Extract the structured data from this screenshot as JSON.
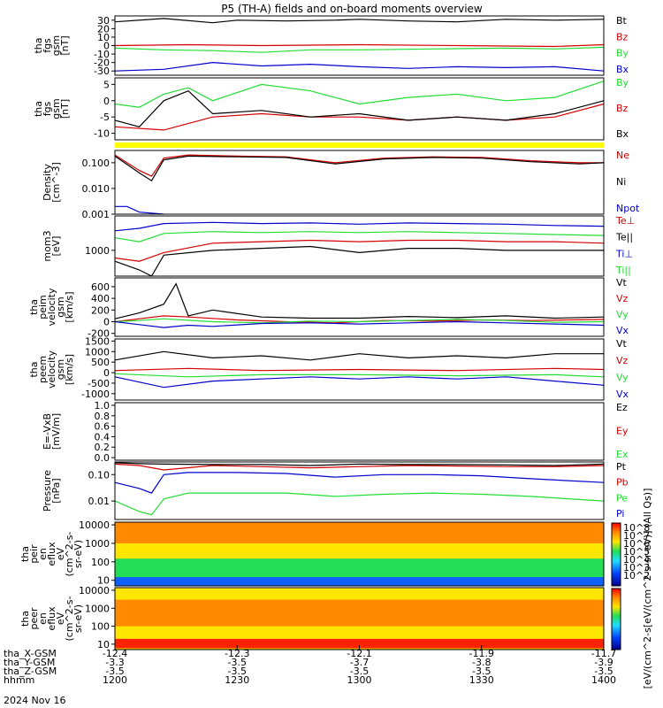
{
  "title": "P5 (TH-A) fields and on-board moments overview",
  "date_label": "2024 Nov 16",
  "colors": {
    "black": "#000000",
    "red": "#d40000",
    "green": "#22dd33",
    "blue": "#0000cc",
    "yellow": "#ffff00"
  },
  "ephemeris": {
    "labels": [
      "tha_X-GSM",
      "tha_Y-GSM",
      "tha_Z-GSM",
      "hhmm"
    ],
    "columns": [
      {
        "x": "-12.4",
        "y": "-3.3",
        "z": "-3.5",
        "hhmm": "1200"
      },
      {
        "x": "-12.3",
        "y": "-3.5",
        "z": "-3.5",
        "hhmm": "1230"
      },
      {
        "x": "-12.1",
        "y": "-3.7",
        "z": "-3.5",
        "hhmm": "1300"
      },
      {
        "x": "-11.9",
        "y": "-3.8",
        "z": "-3.5",
        "hhmm": "1330"
      },
      {
        "x": "-11.7",
        "y": "-3.9",
        "z": "-3.5",
        "hhmm": "1400"
      }
    ]
  },
  "colorbar": {
    "ticks": [
      "10^8",
      "10^7",
      "10^6",
      "10^5",
      "10^4",
      "10^3",
      "10^2"
    ],
    "label": "[eV/(cm^2-s[eV/(cm^2-s-sr-eV)] (All Qs)]"
  },
  "chart_data": [
    {
      "type": "line",
      "panel": "fgs-gsm-1",
      "ylabel": [
        "tha",
        "fgs",
        "gsm",
        "[nT]"
      ],
      "ylim": [
        -35,
        35
      ],
      "yticks": [
        "30",
        "20",
        "10",
        "0",
        "-10",
        "-20",
        "-30"
      ],
      "legend": [
        "Bt",
        "Bz",
        "By",
        "Bx"
      ],
      "series": [
        {
          "name": "Bt",
          "color": "black",
          "x": [
            12.0,
            12.2,
            12.4,
            12.5,
            12.7,
            12.9,
            13.0,
            13.2,
            13.4,
            13.6,
            13.8,
            14.0
          ],
          "y": [
            28,
            32,
            27,
            30,
            29,
            30,
            31,
            29,
            28,
            31,
            30,
            31
          ]
        },
        {
          "name": "Bz",
          "color": "red",
          "x": [
            12.0,
            12.3,
            12.6,
            13.0,
            13.4,
            13.8,
            14.0
          ],
          "y": [
            0,
            1,
            0,
            1,
            0,
            -1,
            1
          ]
        },
        {
          "name": "By",
          "color": "green",
          "x": [
            12.0,
            12.2,
            12.4,
            12.6,
            12.8,
            13.0,
            13.3,
            13.6,
            13.8,
            14.0
          ],
          "y": [
            -3,
            -5,
            -6,
            -8,
            -5,
            -5,
            -4,
            -3,
            -4,
            -2
          ]
        },
        {
          "name": "Bx",
          "color": "blue",
          "x": [
            12.0,
            12.2,
            12.4,
            12.6,
            12.8,
            13.0,
            13.2,
            13.4,
            13.6,
            13.8,
            14.0
          ],
          "y": [
            -30,
            -28,
            -20,
            -24,
            -22,
            -25,
            -27,
            -25,
            -26,
            -25,
            -30
          ]
        }
      ]
    },
    {
      "type": "line",
      "panel": "fgs-gsm-2",
      "ylabel": [
        "tha",
        "fgs",
        "gsm",
        "[nT]"
      ],
      "ylim": [
        -12,
        7
      ],
      "yticks": [
        "5",
        "0",
        "-5",
        "-10"
      ],
      "legend": [
        "By",
        "Bz",
        "Bx"
      ],
      "series": [
        {
          "name": "By",
          "color": "green",
          "x": [
            12.0,
            12.1,
            12.2,
            12.3,
            12.4,
            12.6,
            12.8,
            13.0,
            13.2,
            13.4,
            13.6,
            13.8,
            14.0
          ],
          "y": [
            -1,
            -2,
            2,
            4,
            0,
            5,
            3,
            -1,
            1,
            2,
            0,
            1,
            6
          ]
        },
        {
          "name": "Bz",
          "color": "red",
          "x": [
            12.0,
            12.2,
            12.4,
            12.6,
            12.8,
            13.0,
            13.2,
            13.4,
            13.6,
            13.8,
            14.0
          ],
          "y": [
            -8,
            -9,
            -5,
            -4,
            -5,
            -5,
            -6,
            -5,
            -6,
            -5,
            -1
          ]
        },
        {
          "name": "Bx",
          "color": "black",
          "x": [
            12.0,
            12.1,
            12.2,
            12.3,
            12.4,
            12.6,
            12.8,
            13.0,
            13.2,
            13.4,
            13.6,
            13.8,
            14.0
          ],
          "y": [
            -6,
            -8,
            0,
            3,
            -4,
            -3,
            -5,
            -4,
            -6,
            -5,
            -6,
            -4,
            0
          ]
        }
      ]
    },
    {
      "type": "line",
      "panel": "density",
      "ylabel": [
        "Density",
        "[cm^-3]"
      ],
      "yscale": "log",
      "ylim": [
        0.001,
        0.3
      ],
      "yticks": [
        "0.100",
        "0.010",
        "0.001"
      ],
      "legend": [
        "Ne",
        "Ni",
        "Npot"
      ],
      "series": [
        {
          "name": "Ne",
          "color": "red",
          "x": [
            12.0,
            12.1,
            12.15,
            12.2,
            12.3,
            12.5,
            12.7,
            12.9,
            13.1,
            13.3,
            13.5,
            13.7,
            13.9,
            14.0
          ],
          "y": [
            0.2,
            0.05,
            0.03,
            0.15,
            0.2,
            0.18,
            0.17,
            0.1,
            0.15,
            0.17,
            0.16,
            0.12,
            0.1,
            0.1
          ]
        },
        {
          "name": "Ni",
          "color": "black",
          "x": [
            12.0,
            12.1,
            12.15,
            12.2,
            12.3,
            12.5,
            12.7,
            12.9,
            13.1,
            13.3,
            13.5,
            13.7,
            13.9,
            14.0
          ],
          "y": [
            0.18,
            0.04,
            0.02,
            0.13,
            0.18,
            0.17,
            0.16,
            0.09,
            0.14,
            0.16,
            0.15,
            0.11,
            0.09,
            0.1
          ]
        },
        {
          "name": "Npot",
          "color": "blue",
          "x": [
            12.0,
            12.05,
            12.1,
            12.2
          ],
          "y": [
            0.002,
            0.002,
            0.0012,
            0.001
          ]
        }
      ]
    },
    {
      "type": "line",
      "panel": "temperature",
      "ylabel": [
        "mom3",
        "[eV]"
      ],
      "yscale": "log",
      "ylim": [
        300,
        5000
      ],
      "yticks": [
        "1000"
      ],
      "legend": [
        "Te⊥",
        "Te||",
        "Ti⊥",
        "Ti||"
      ],
      "series": [
        {
          "name": "Te⊥",
          "color": "red",
          "x": [
            12.0,
            12.1,
            12.2,
            12.4,
            12.6,
            12.8,
            13.0,
            13.2,
            13.4,
            13.6,
            13.8,
            14.0
          ],
          "y": [
            700,
            600,
            900,
            1400,
            1500,
            1600,
            1500,
            1600,
            1600,
            1500,
            1500,
            1400
          ]
        },
        {
          "name": "Te||",
          "color": "black",
          "x": [
            12.0,
            12.1,
            12.15,
            12.2,
            12.4,
            12.6,
            12.8,
            13.0,
            13.2,
            13.4,
            13.6,
            13.8,
            14.0
          ],
          "y": [
            600,
            400,
            300,
            800,
            1000,
            1100,
            1200,
            900,
            1100,
            1100,
            1000,
            1000,
            1000
          ]
        },
        {
          "name": "Ti⊥",
          "color": "blue",
          "x": [
            12.0,
            12.1,
            12.2,
            12.4,
            12.6,
            12.8,
            13.0,
            13.2,
            13.4,
            13.6,
            13.8,
            14.0
          ],
          "y": [
            2500,
            2800,
            3500,
            3700,
            3500,
            3600,
            3400,
            3600,
            3500,
            3400,
            3200,
            3100
          ]
        },
        {
          "name": "Ti||",
          "color": "green",
          "x": [
            12.0,
            12.1,
            12.2,
            12.4,
            12.6,
            12.8,
            13.0,
            13.2,
            13.4,
            13.6,
            13.8,
            14.0
          ],
          "y": [
            1800,
            1500,
            2200,
            2400,
            2300,
            2400,
            2300,
            2400,
            2300,
            2200,
            2100,
            2000
          ]
        }
      ]
    },
    {
      "type": "line",
      "panel": "peim-velocity",
      "ylabel": [
        "tha",
        "peim",
        "velocity",
        "gsm",
        "[km/s]"
      ],
      "ylim": [
        -250,
        750
      ],
      "yticks": [
        "600",
        "400",
        "200",
        "0",
        "-200"
      ],
      "legend": [
        "Vt",
        "Vz",
        "Vy",
        "Vx"
      ],
      "series": [
        {
          "name": "Vt",
          "color": "black",
          "x": [
            12.0,
            12.1,
            12.2,
            12.25,
            12.3,
            12.4,
            12.6,
            12.8,
            13.0,
            13.2,
            13.4,
            13.6,
            13.8,
            14.0
          ],
          "y": [
            50,
            150,
            300,
            650,
            100,
            200,
            80,
            60,
            60,
            90,
            70,
            100,
            60,
            80
          ]
        },
        {
          "name": "Vz",
          "color": "red",
          "x": [
            12.0,
            12.1,
            12.2,
            12.3,
            12.5,
            12.7,
            12.9,
            13.1,
            13.3,
            13.5,
            13.7,
            14.0
          ],
          "y": [
            0,
            50,
            100,
            80,
            30,
            0,
            -20,
            20,
            10,
            30,
            20,
            40
          ]
        },
        {
          "name": "Vy",
          "color": "green",
          "x": [
            12.0,
            12.1,
            12.2,
            12.4,
            12.6,
            12.8,
            13.0,
            13.2,
            13.4,
            13.6,
            13.8,
            14.0
          ],
          "y": [
            0,
            20,
            50,
            0,
            -20,
            10,
            0,
            20,
            40,
            20,
            -10,
            0
          ]
        },
        {
          "name": "Vx",
          "color": "blue",
          "x": [
            12.0,
            12.1,
            12.2,
            12.3,
            12.4,
            12.6,
            12.8,
            13.0,
            13.2,
            13.4,
            13.6,
            13.8,
            14.0
          ],
          "y": [
            0,
            -50,
            -100,
            -60,
            -80,
            -30,
            -20,
            -40,
            -20,
            0,
            -20,
            -40,
            -60
          ]
        }
      ]
    },
    {
      "type": "line",
      "panel": "peem-velocity",
      "ylabel": [
        "tha",
        "peem",
        "velocity",
        "gsm",
        "[km/s]"
      ],
      "ylim": [
        -1300,
        1600
      ],
      "yticks": [
        "1500",
        "1000",
        "500",
        "0",
        "-500",
        "-1000"
      ],
      "legend": [
        "Vt",
        "Vz",
        "Vy",
        "Vx"
      ],
      "series": [
        {
          "name": "Vt",
          "color": "black",
          "x": [
            12.0,
            12.2,
            12.4,
            12.6,
            12.8,
            13.0,
            13.2,
            13.4,
            13.6,
            13.8,
            14.0
          ],
          "y": [
            600,
            1000,
            700,
            800,
            600,
            900,
            700,
            800,
            700,
            900,
            900
          ]
        },
        {
          "name": "Vz",
          "color": "red",
          "x": [
            12.0,
            12.3,
            12.6,
            13.0,
            13.4,
            13.8,
            14.0
          ],
          "y": [
            100,
            200,
            100,
            150,
            100,
            200,
            150
          ]
        },
        {
          "name": "Vy",
          "color": "green",
          "x": [
            12.0,
            12.3,
            12.6,
            13.0,
            13.4,
            13.8,
            14.0
          ],
          "y": [
            -50,
            -200,
            -100,
            -100,
            -150,
            -100,
            -200
          ]
        },
        {
          "name": "Vx",
          "color": "blue",
          "x": [
            12.0,
            12.2,
            12.4,
            12.6,
            12.8,
            13.0,
            13.2,
            13.4,
            13.6,
            13.8,
            14.0
          ],
          "y": [
            -200,
            -700,
            -400,
            -300,
            -200,
            -300,
            -200,
            -300,
            -200,
            -400,
            -600
          ]
        }
      ]
    },
    {
      "type": "line",
      "panel": "efield",
      "ylabel": [
        "E=-VxB",
        "[mV/m]"
      ],
      "ylim": [
        -0.05,
        1.05
      ],
      "yticks": [
        "1.0",
        "0.8",
        "0.6",
        "0.4",
        "0.2",
        "0.0"
      ],
      "legend": [
        "Ez",
        "Ey",
        "Ex"
      ],
      "series": []
    },
    {
      "type": "line",
      "panel": "pressure",
      "ylabel": [
        "Pressure",
        "[nPa]"
      ],
      "yscale": "log",
      "ylim": [
        0.002,
        0.3
      ],
      "yticks": [
        "0.10",
        "0.01"
      ],
      "legend": [
        "Pt",
        "Pb",
        "Pe",
        "Pi"
      ],
      "series": [
        {
          "name": "Pt",
          "color": "black",
          "x": [
            12.0,
            12.1,
            12.2,
            12.4,
            12.6,
            12.8,
            13.0,
            13.2,
            13.4,
            13.6,
            13.8,
            14.0
          ],
          "y": [
            0.28,
            0.26,
            0.25,
            0.24,
            0.24,
            0.22,
            0.25,
            0.24,
            0.24,
            0.23,
            0.22,
            0.25
          ]
        },
        {
          "name": "Pb",
          "color": "red",
          "x": [
            12.0,
            12.1,
            12.2,
            12.4,
            12.6,
            12.8,
            13.0,
            13.2,
            13.4,
            13.6,
            13.8,
            14.0
          ],
          "y": [
            0.25,
            0.22,
            0.15,
            0.22,
            0.2,
            0.18,
            0.2,
            0.22,
            0.21,
            0.2,
            0.2,
            0.22
          ]
        },
        {
          "name": "Pe",
          "color": "green",
          "x": [
            12.0,
            12.1,
            12.15,
            12.2,
            12.3,
            12.5,
            12.7,
            12.9,
            13.1,
            13.3,
            13.5,
            13.7,
            14.0
          ],
          "y": [
            0.01,
            0.004,
            0.003,
            0.012,
            0.02,
            0.02,
            0.02,
            0.015,
            0.018,
            0.02,
            0.018,
            0.015,
            0.01
          ]
        },
        {
          "name": "Pi",
          "color": "blue",
          "x": [
            12.0,
            12.1,
            12.15,
            12.2,
            12.3,
            12.5,
            12.7,
            12.9,
            13.1,
            13.3,
            13.5,
            13.7,
            14.0
          ],
          "y": [
            0.05,
            0.03,
            0.02,
            0.1,
            0.12,
            0.12,
            0.11,
            0.08,
            0.1,
            0.1,
            0.09,
            0.07,
            0.05
          ]
        }
      ]
    },
    {
      "type": "heatmap",
      "panel": "peir",
      "ylabel": [
        "tha",
        "peir",
        "en",
        "eflux",
        "eV",
        "(cm^2-s-",
        "sr-eV)"
      ],
      "yscale": "log",
      "yticks": [
        "10000",
        "1000",
        "100",
        "10"
      ],
      "bands": [
        {
          "e_min": 5,
          "e_max": 15,
          "level": "blue"
        },
        {
          "e_min": 15,
          "e_max": 150,
          "level": "green"
        },
        {
          "e_min": 150,
          "e_max": 1000,
          "level": "yellow"
        },
        {
          "e_min": 1000,
          "e_max": 14000,
          "level": "orange"
        }
      ]
    },
    {
      "type": "heatmap",
      "panel": "peer",
      "ylabel": [
        "tha",
        "peer",
        "en",
        "eflux",
        "eV",
        "(cm^2-s-",
        "sr-eV)"
      ],
      "yscale": "log",
      "yticks": [
        "10000",
        "1000",
        "100",
        "10"
      ],
      "bands": [
        {
          "e_min": 6,
          "e_max": 20,
          "level": "red"
        },
        {
          "e_min": 20,
          "e_max": 100,
          "level": "yellow"
        },
        {
          "e_min": 100,
          "e_max": 3000,
          "level": "orange"
        },
        {
          "e_min": 3000,
          "e_max": 14000,
          "level": "yellow"
        }
      ]
    }
  ]
}
